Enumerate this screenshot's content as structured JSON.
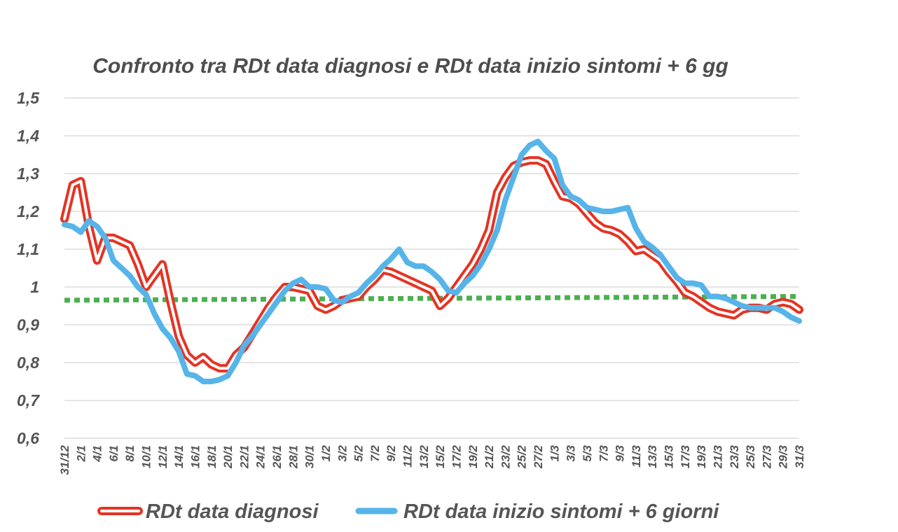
{
  "chart_data": {
    "type": "line",
    "title": "Confronto tra RDt data diagnosi e RDt data inizio sintomi + 6 gg",
    "xlabel": "",
    "ylabel": "",
    "ylim": [
      0.6,
      1.5
    ],
    "y_ticks": [
      "0,6",
      "0,7",
      "0,8",
      "0,9",
      "1",
      "1,1",
      "1,2",
      "1,3",
      "1,4",
      "1,5"
    ],
    "x_tick_labels": [
      "31/12",
      "2/1",
      "4/1",
      "6/1",
      "8/1",
      "10/1",
      "12/1",
      "14/1",
      "16/1",
      "18/1",
      "20/1",
      "22/1",
      "24/1",
      "26/1",
      "28/1",
      "30/1",
      "1/2",
      "3/2",
      "5/2",
      "7/2",
      "9/2",
      "11/2",
      "13/2",
      "15/2",
      "17/2",
      "19/2",
      "21/2",
      "23/2",
      "25/2",
      "27/2",
      "1/3",
      "3/3",
      "5/3",
      "7/3",
      "9/3",
      "11/3",
      "13/3",
      "15/3",
      "17/3",
      "19/3",
      "21/3",
      "23/3",
      "25/3",
      "27/3",
      "29/3",
      "31/3"
    ],
    "x_start": "31/12",
    "x_end": "31/3",
    "grid": true,
    "legend_position": "bottom",
    "series": [
      {
        "name": "RDt data diagnosi",
        "color": "#e53323",
        "style": "double-line",
        "points": [
          [
            "31/12",
            1.18
          ],
          [
            "1/1",
            1.27
          ],
          [
            "2/1",
            1.28
          ],
          [
            "3/1",
            1.16
          ],
          [
            "4/1",
            1.07
          ],
          [
            "5/1",
            1.13
          ],
          [
            "6/1",
            1.13
          ],
          [
            "7/1",
            1.12
          ],
          [
            "8/1",
            1.11
          ],
          [
            "9/1",
            1.06
          ],
          [
            "10/1",
            1.0
          ],
          [
            "11/1",
            1.03
          ],
          [
            "12/1",
            1.06
          ],
          [
            "13/1",
            0.96
          ],
          [
            "14/1",
            0.87
          ],
          [
            "15/1",
            0.82
          ],
          [
            "16/1",
            0.8
          ],
          [
            "17/1",
            0.815
          ],
          [
            "18/1",
            0.795
          ],
          [
            "19/1",
            0.785
          ],
          [
            "20/1",
            0.785
          ],
          [
            "21/1",
            0.82
          ],
          [
            "22/1",
            0.84
          ],
          [
            "23/1",
            0.875
          ],
          [
            "24/1",
            0.91
          ],
          [
            "25/1",
            0.945
          ],
          [
            "26/1",
            0.975
          ],
          [
            "27/1",
            1.0
          ],
          [
            "28/1",
            1.0
          ],
          [
            "29/1",
            0.995
          ],
          [
            "30/1",
            0.99
          ],
          [
            "31/1",
            0.95
          ],
          [
            "1/2",
            0.94
          ],
          [
            "2/2",
            0.95
          ],
          [
            "3/2",
            0.965
          ],
          [
            "4/2",
            0.97
          ],
          [
            "5/2",
            0.975
          ],
          [
            "6/2",
            1.0
          ],
          [
            "7/2",
            1.02
          ],
          [
            "8/2",
            1.045
          ],
          [
            "9/2",
            1.04
          ],
          [
            "10/2",
            1.03
          ],
          [
            "11/2",
            1.02
          ],
          [
            "12/2",
            1.01
          ],
          [
            "13/2",
            1.0
          ],
          [
            "14/2",
            0.99
          ],
          [
            "15/2",
            0.95
          ],
          [
            "16/2",
            0.97
          ],
          [
            "17/2",
            1.0
          ],
          [
            "18/2",
            1.03
          ],
          [
            "19/2",
            1.06
          ],
          [
            "20/2",
            1.1
          ],
          [
            "21/2",
            1.15
          ],
          [
            "22/2",
            1.25
          ],
          [
            "23/2",
            1.29
          ],
          [
            "24/2",
            1.32
          ],
          [
            "25/2",
            1.33
          ],
          [
            "26/2",
            1.335
          ],
          [
            "27/2",
            1.335
          ],
          [
            "28/2",
            1.325
          ],
          [
            "1/3",
            1.28
          ],
          [
            "2/3",
            1.24
          ],
          [
            "3/3",
            1.235
          ],
          [
            "4/3",
            1.22
          ],
          [
            "5/3",
            1.195
          ],
          [
            "6/3",
            1.17
          ],
          [
            "7/3",
            1.155
          ],
          [
            "8/3",
            1.15
          ],
          [
            "9/3",
            1.14
          ],
          [
            "10/3",
            1.12
          ],
          [
            "11/3",
            1.095
          ],
          [
            "12/3",
            1.1
          ],
          [
            "13/3",
            1.085
          ],
          [
            "14/3",
            1.07
          ],
          [
            "15/3",
            1.04
          ],
          [
            "16/3",
            1.015
          ],
          [
            "17/3",
            0.985
          ],
          [
            "18/3",
            0.975
          ],
          [
            "19/3",
            0.96
          ],
          [
            "20/3",
            0.945
          ],
          [
            "21/3",
            0.935
          ],
          [
            "22/3",
            0.93
          ],
          [
            "23/3",
            0.925
          ],
          [
            "24/3",
            0.94
          ],
          [
            "25/3",
            0.945
          ],
          [
            "26/3",
            0.945
          ],
          [
            "27/3",
            0.94
          ],
          [
            "28/3",
            0.955
          ],
          [
            "29/3",
            0.96
          ],
          [
            "30/3",
            0.955
          ],
          [
            "31/3",
            0.94
          ]
        ]
      },
      {
        "name": "RDt data inizio sintomi + 6 giorni",
        "color": "#56b4e9",
        "style": "solid",
        "points": [
          [
            "31/12",
            1.165
          ],
          [
            "1/1",
            1.16
          ],
          [
            "2/1",
            1.145
          ],
          [
            "3/1",
            1.175
          ],
          [
            "4/1",
            1.16
          ],
          [
            "5/1",
            1.13
          ],
          [
            "6/1",
            1.07
          ],
          [
            "7/1",
            1.05
          ],
          [
            "8/1",
            1.03
          ],
          [
            "9/1",
            1.0
          ],
          [
            "10/1",
            0.98
          ],
          [
            "11/1",
            0.93
          ],
          [
            "12/1",
            0.89
          ],
          [
            "13/1",
            0.865
          ],
          [
            "14/1",
            0.83
          ],
          [
            "15/1",
            0.77
          ],
          [
            "16/1",
            0.765
          ],
          [
            "17/1",
            0.75
          ],
          [
            "18/1",
            0.75
          ],
          [
            "19/1",
            0.755
          ],
          [
            "20/1",
            0.765
          ],
          [
            "21/1",
            0.8
          ],
          [
            "22/1",
            0.845
          ],
          [
            "23/1",
            0.87
          ],
          [
            "24/1",
            0.9
          ],
          [
            "25/1",
            0.93
          ],
          [
            "26/1",
            0.96
          ],
          [
            "27/1",
            0.99
          ],
          [
            "28/1",
            1.01
          ],
          [
            "29/1",
            1.02
          ],
          [
            "30/1",
            1.0
          ],
          [
            "31/1",
            1.0
          ],
          [
            "1/2",
            0.995
          ],
          [
            "2/2",
            0.965
          ],
          [
            "3/2",
            0.96
          ],
          [
            "4/2",
            0.975
          ],
          [
            "5/2",
            0.985
          ],
          [
            "6/2",
            1.01
          ],
          [
            "7/2",
            1.03
          ],
          [
            "8/2",
            1.055
          ],
          [
            "9/2",
            1.075
          ],
          [
            "10/2",
            1.1
          ],
          [
            "11/2",
            1.065
          ],
          [
            "12/2",
            1.055
          ],
          [
            "13/2",
            1.055
          ],
          [
            "14/2",
            1.04
          ],
          [
            "15/2",
            1.02
          ],
          [
            "16/2",
            0.99
          ],
          [
            "17/2",
            0.985
          ],
          [
            "18/2",
            1.01
          ],
          [
            "19/2",
            1.03
          ],
          [
            "20/2",
            1.06
          ],
          [
            "21/2",
            1.1
          ],
          [
            "22/2",
            1.15
          ],
          [
            "23/2",
            1.23
          ],
          [
            "24/2",
            1.29
          ],
          [
            "25/2",
            1.35
          ],
          [
            "26/2",
            1.375
          ],
          [
            "27/2",
            1.385
          ],
          [
            "28/2",
            1.36
          ],
          [
            "1/3",
            1.34
          ],
          [
            "2/3",
            1.27
          ],
          [
            "3/3",
            1.24
          ],
          [
            "4/3",
            1.23
          ],
          [
            "5/3",
            1.21
          ],
          [
            "6/3",
            1.205
          ],
          [
            "7/3",
            1.2
          ],
          [
            "8/3",
            1.2
          ],
          [
            "9/3",
            1.205
          ],
          [
            "10/3",
            1.21
          ],
          [
            "11/3",
            1.155
          ],
          [
            "12/3",
            1.12
          ],
          [
            "13/3",
            1.105
          ],
          [
            "14/3",
            1.085
          ],
          [
            "15/3",
            1.055
          ],
          [
            "16/3",
            1.025
          ],
          [
            "17/3",
            1.01
          ],
          [
            "18/3",
            1.01
          ],
          [
            "19/3",
            1.005
          ],
          [
            "20/3",
            0.975
          ],
          [
            "21/3",
            0.975
          ],
          [
            "22/3",
            0.97
          ],
          [
            "23/3",
            0.96
          ],
          [
            "24/3",
            0.95
          ],
          [
            "25/3",
            0.945
          ],
          [
            "26/3",
            0.945
          ],
          [
            "27/3",
            0.945
          ],
          [
            "28/3",
            0.945
          ],
          [
            "29/3",
            0.935
          ],
          [
            "30/3",
            0.92
          ],
          [
            "31/3",
            0.91
          ]
        ]
      }
    ],
    "reference_line": {
      "color": "#4caf50",
      "style": "dotted",
      "points": [
        [
          "31/12",
          0.965
        ],
        [
          "31/3",
          0.975
        ]
      ]
    }
  },
  "legend": {
    "items": [
      {
        "label": "RDt data diagnosi",
        "color": "#e53323"
      },
      {
        "label": "RDt data inizio sintomi + 6 giorni",
        "color": "#56b4e9"
      }
    ]
  }
}
